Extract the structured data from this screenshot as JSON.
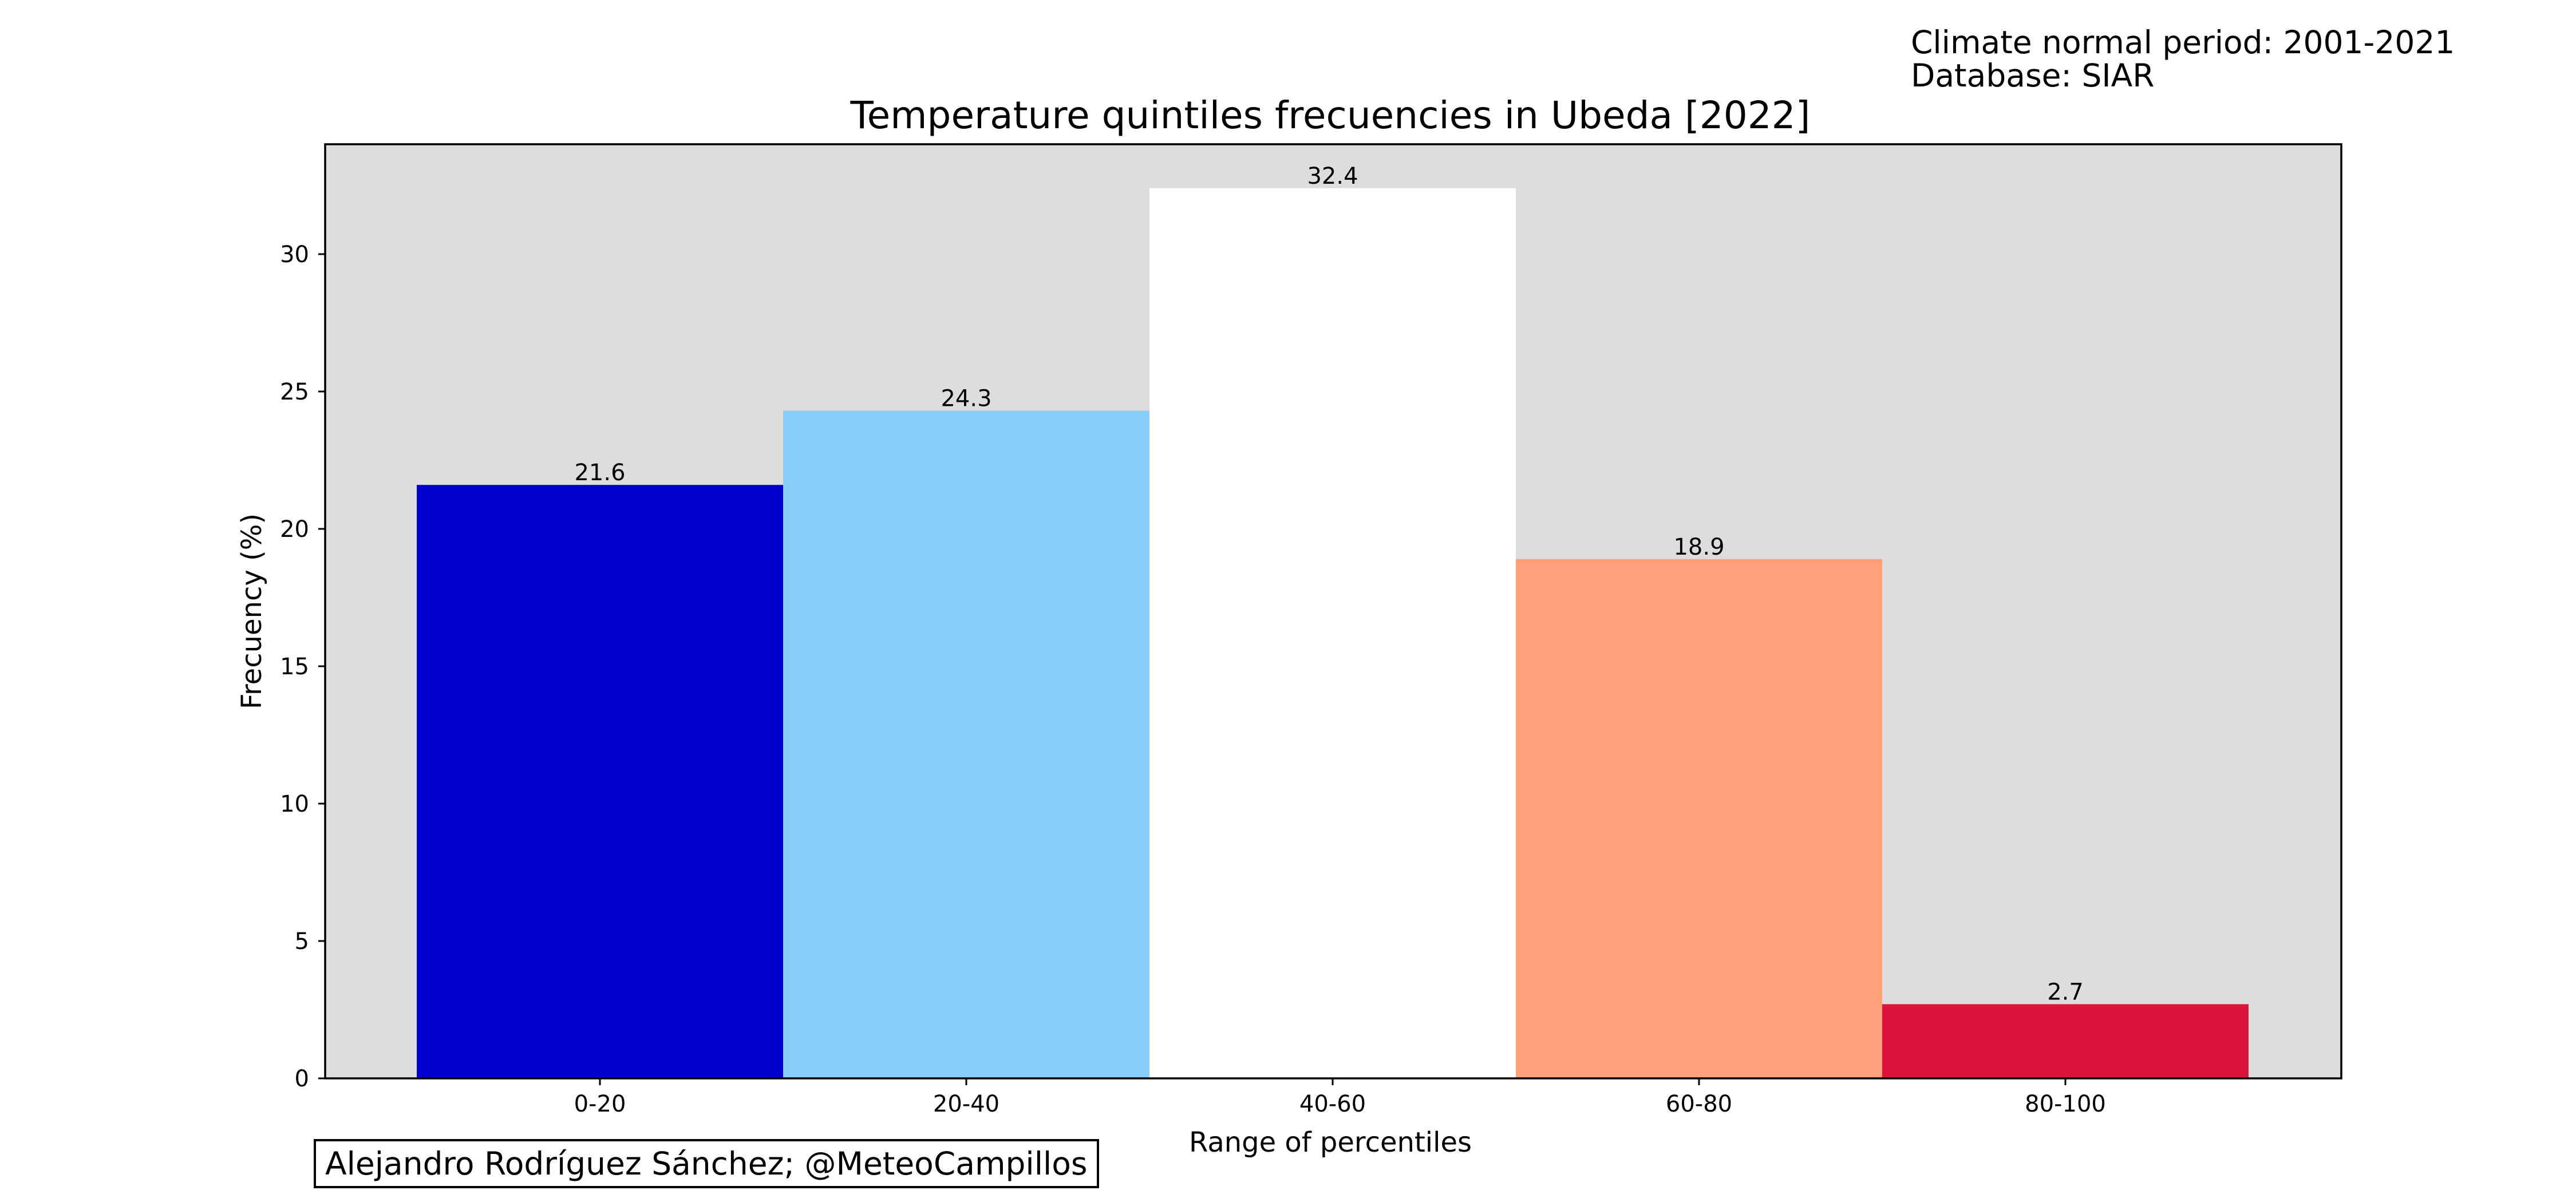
{
  "notes": {
    "period": "Climate normal period: 2001-2021",
    "database": "Database: SIAR"
  },
  "credit": "Alejandro Rodríguez Sánchez; @MeteoCampillos",
  "chart_data": {
    "type": "bar",
    "title": "Temperature quintiles frecuencies in Ubeda [2022]",
    "xlabel": "Range of percentiles",
    "ylabel": "Frecuency (%)",
    "categories": [
      "0-20",
      "20-40",
      "40-60",
      "60-80",
      "80-100"
    ],
    "values": [
      21.6,
      24.3,
      32.4,
      18.9,
      2.7
    ],
    "data_labels": [
      "21.6",
      "24.3",
      "32.4",
      "18.9",
      "2.7"
    ],
    "colors": [
      "#0000cd",
      "#87cefa",
      "#ffffff",
      "#ffa07a",
      "#dc143c"
    ],
    "ylim": [
      0,
      34
    ],
    "yticks": [
      0,
      5,
      10,
      15,
      20,
      25,
      30
    ],
    "plot_background": "#dddddd",
    "grid": false,
    "legend": false
  }
}
